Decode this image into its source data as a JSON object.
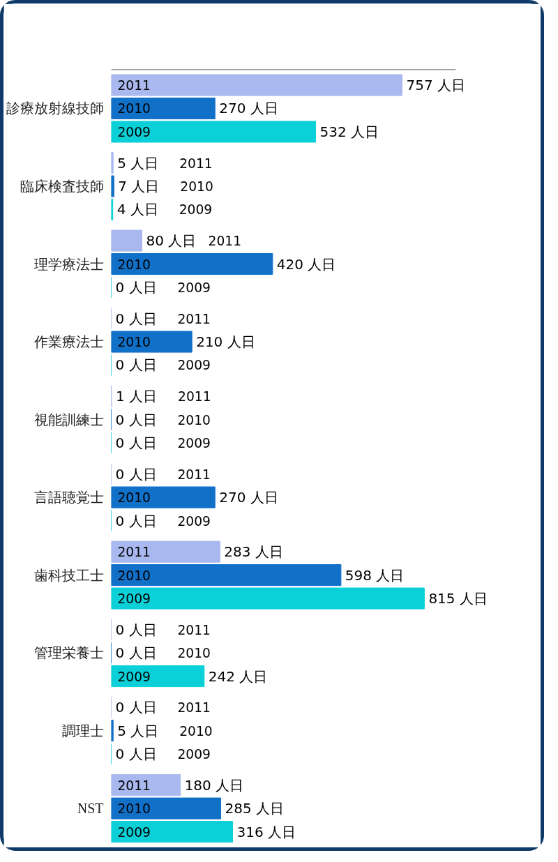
{
  "chart_data": {
    "type": "bar",
    "orientation": "horizontal",
    "categories": [
      "診療放射線技師",
      "臨床検査技師",
      "理学療法士",
      "作業療法士",
      "視能訓練士",
      "言語聴覚士",
      "歯科技工士",
      "管理栄養士",
      "調理士",
      "NST"
    ],
    "series": [
      {
        "name": "2011",
        "color": "#a9b8ee",
        "values": [
          757,
          5,
          80,
          0,
          1,
          0,
          283,
          0,
          0,
          180
        ],
        "value_labels": [
          "757 人日",
          "5 人日",
          "80 人日",
          "0 人日",
          "1 人日",
          "0 人日",
          "283 人日",
          "0 人日",
          "0 人日",
          "180 人日"
        ]
      },
      {
        "name": "2010",
        "color": "#1170c8",
        "values": [
          270,
          7,
          420,
          210,
          0,
          270,
          598,
          0,
          5,
          285
        ],
        "value_labels": [
          "270 人日",
          "7 人日",
          "420 人日",
          "210 人日",
          "0 人日",
          "270 人日",
          "598 人日",
          "0 人日",
          "5 人日",
          "285 人日"
        ]
      },
      {
        "name": "2009",
        "color": "#0cd0d8",
        "values": [
          532,
          4,
          0,
          0,
          0,
          0,
          815,
          242,
          0,
          316
        ],
        "value_labels": [
          "532 人日",
          "4 人日",
          "0 人日",
          "0 人日",
          "0 人日",
          "0 人日",
          "815 人日",
          "242 人日",
          "0 人日",
          "316 人日"
        ]
      }
    ],
    "grid": false
  }
}
